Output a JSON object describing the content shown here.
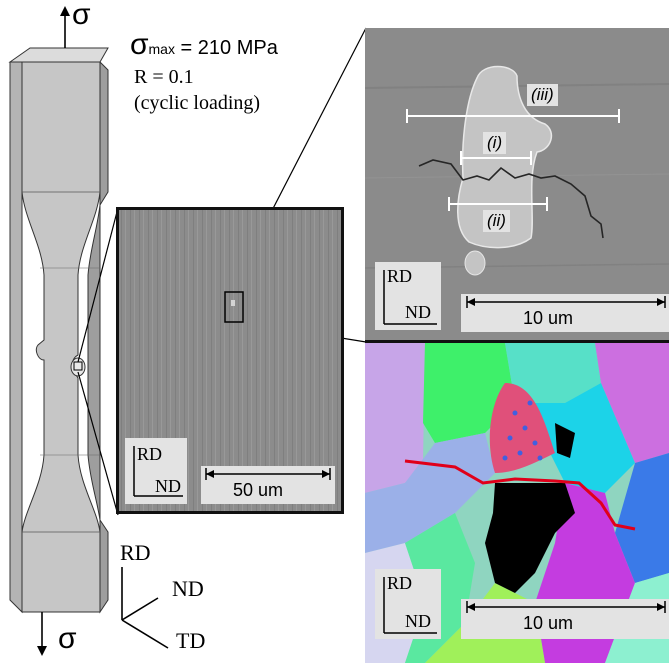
{
  "loading": {
    "sigma": "σ",
    "sigma_max_symbol": "σ",
    "sigma_max_sub": "max",
    "sigma_max_value": " = 210 MPa",
    "r_ratio": "R = 0.1",
    "loading_type": "(cyclic loading)"
  },
  "axes_triad": {
    "rd": "RD",
    "nd": "ND",
    "td": "TD"
  },
  "panels": {
    "low_mag": {
      "axis_rd": "RD",
      "axis_nd": "ND",
      "scale": "50 um"
    },
    "sem_zoom": {
      "labels": [
        "(iii)",
        "(i)",
        "(ii)"
      ],
      "axis_rd": "RD",
      "axis_nd": "ND",
      "scale": "10 um"
    },
    "ebsd": {
      "axis_rd": "RD",
      "axis_nd": "ND",
      "scale": "10 um"
    }
  },
  "colors": {
    "specimen_front": "#c8c8c8",
    "specimen_side": "#a9a9a9",
    "sem_background": "#8f8f8f",
    "crack_path": "#e0001a"
  }
}
